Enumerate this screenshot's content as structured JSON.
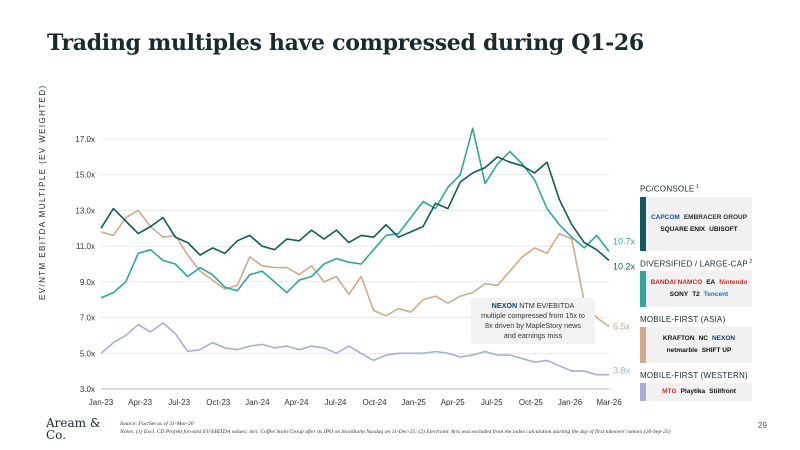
{
  "title": "Trading multiples have compressed during Q1-26",
  "y_axis_label": "EV/NTM EBITDA MULTIPLE (EV WEIGHTED)",
  "callout": {
    "brand": "NEXON",
    "line1": "NTM EV/EBITDA",
    "line2": "multiple compressed from 15x to",
    "line3": "8x driven by MapleStory news",
    "line4": "and earnings miss"
  },
  "groups": [
    {
      "title": "PC/CONSOLE",
      "note": "1",
      "color": "#0f5b57",
      "logos": [
        {
          "name": "CAPCOM",
          "color": "#1b4f9c"
        },
        {
          "name": "EMBRACER GROUP",
          "color": "#333"
        },
        {
          "name": "SQUARE ENIX",
          "color": "#111"
        },
        {
          "name": "UBISOFT",
          "color": "#111"
        }
      ]
    },
    {
      "title": "DIVERSIFIED / LARGE-CAP",
      "note": "2",
      "color": "#2fa79e",
      "logos": [
        {
          "name": "BANDAI NAMCO",
          "color": "#c32b2b"
        },
        {
          "name": "EA",
          "color": "#111"
        },
        {
          "name": "Nintendo",
          "color": "#d22b2b"
        },
        {
          "name": "SONY",
          "color": "#111"
        },
        {
          "name": "T2",
          "color": "#111"
        },
        {
          "name": "Tencent",
          "color": "#1a6fc6"
        }
      ]
    },
    {
      "title": "MOBILE-FIRST (ASIA)",
      "note": "",
      "color": "#d2a98a",
      "logos": [
        {
          "name": "KRAFTON",
          "color": "#111"
        },
        {
          "name": "NC",
          "color": "#111"
        },
        {
          "name": "NEXON",
          "color": "#1c3b78"
        },
        {
          "name": "netmarble",
          "color": "#111"
        },
        {
          "name": "SHIFT UP",
          "color": "#111"
        }
      ]
    },
    {
      "title": "MOBILE-FIRST (WESTERN)",
      "note": "",
      "color": "#a7aedc",
      "logos": [
        {
          "name": "MTG",
          "color": "#d42a2a"
        },
        {
          "name": "Playtika",
          "color": "#111"
        },
        {
          "name": "Stillfront",
          "color": "#111"
        }
      ]
    }
  ],
  "footer": {
    "logo_line1": "Aream &",
    "logo_line2": "Co.",
    "source": "Source: FactSet as of 31-Mar-26",
    "notes": "Notes: (1) Excl. CD Projekt forward EV/EBITDA values; incl. Coffee Stain Group after its IPO on Stockholm Nasdaq on 11-Dec-25; (2) Electronic Arts was excluded from the index calculation starting the day of first takeover rumors (26-Sep-25)",
    "page": "29"
  },
  "chart_data": {
    "type": "line",
    "x_labels": [
      "Jan-23",
      "Apr-23",
      "Jul-23",
      "Oct-23",
      "Jan-24",
      "Apr-24",
      "Jul-24",
      "Oct-24",
      "Jan-25",
      "Apr-25",
      "Jul-25",
      "Oct-25",
      "Jan-26",
      "Mar-26"
    ],
    "y_ticks": [
      "3.0x",
      "5.0x",
      "7.0x",
      "9.0x",
      "11.0x",
      "13.0x",
      "15.0x",
      "17.0x"
    ],
    "ylim": [
      3,
      17
    ],
    "grid": true,
    "series": [
      {
        "name": "PC/CONSOLE",
        "color": "#0f5b57",
        "end_label": "10.2x",
        "values": [
          12.0,
          13.1,
          12.4,
          11.7,
          12.1,
          12.6,
          11.5,
          11.2,
          10.5,
          10.9,
          10.6,
          11.3,
          11.6,
          11.0,
          10.8,
          11.4,
          11.3,
          11.9,
          11.4,
          11.9,
          11.2,
          11.6,
          11.5,
          12.2,
          11.5,
          11.8,
          12.1,
          13.4,
          13.1,
          14.6,
          15.1,
          15.4,
          16.0,
          15.7,
          15.5,
          15.1,
          15.7,
          13.6,
          12.2,
          11.2,
          10.8,
          10.2
        ]
      },
      {
        "name": "DIVERSIFIED / LARGE-CAP",
        "color": "#2fa79e",
        "end_label": "10.7x",
        "values": [
          8.1,
          8.4,
          9.0,
          10.6,
          10.8,
          10.2,
          10.0,
          9.3,
          9.8,
          9.4,
          8.7,
          8.5,
          9.4,
          9.6,
          9.0,
          8.4,
          9.1,
          9.3,
          10.0,
          10.3,
          10.1,
          10.0,
          10.8,
          11.6,
          11.7,
          12.6,
          13.5,
          13.1,
          14.3,
          15.0,
          17.6,
          14.5,
          15.6,
          16.3,
          15.6,
          14.7,
          13.1,
          12.2,
          11.5,
          10.9,
          11.6,
          10.7
        ]
      },
      {
        "name": "MOBILE-FIRST (ASIA)",
        "color": "#d2a98a",
        "end_label": "6.5x",
        "values": [
          11.8,
          11.6,
          12.6,
          13.0,
          12.1,
          11.5,
          11.6,
          10.5,
          9.6,
          9.1,
          8.6,
          8.8,
          10.4,
          9.9,
          9.8,
          9.8,
          9.4,
          9.9,
          9.0,
          9.3,
          8.3,
          9.3,
          7.4,
          7.1,
          7.5,
          7.3,
          8.0,
          8.2,
          7.8,
          8.2,
          8.4,
          8.9,
          8.8,
          9.6,
          10.4,
          10.9,
          10.6,
          11.7,
          11.4,
          7.9,
          7.0,
          6.5
        ]
      },
      {
        "name": "MOBILE-FIRST (WESTERN)",
        "color": "#a7aedc",
        "end_label": "3.8x",
        "values": [
          5.0,
          5.6,
          6.0,
          6.6,
          6.2,
          6.7,
          6.1,
          5.1,
          5.2,
          5.6,
          5.3,
          5.2,
          5.4,
          5.5,
          5.3,
          5.4,
          5.2,
          5.4,
          5.3,
          5.0,
          5.4,
          5.0,
          4.6,
          4.9,
          5.0,
          5.0,
          5.0,
          5.1,
          5.0,
          4.8,
          4.9,
          5.1,
          4.9,
          4.9,
          4.7,
          4.5,
          4.6,
          4.3,
          4.0,
          4.0,
          3.8,
          3.8
        ]
      }
    ]
  }
}
